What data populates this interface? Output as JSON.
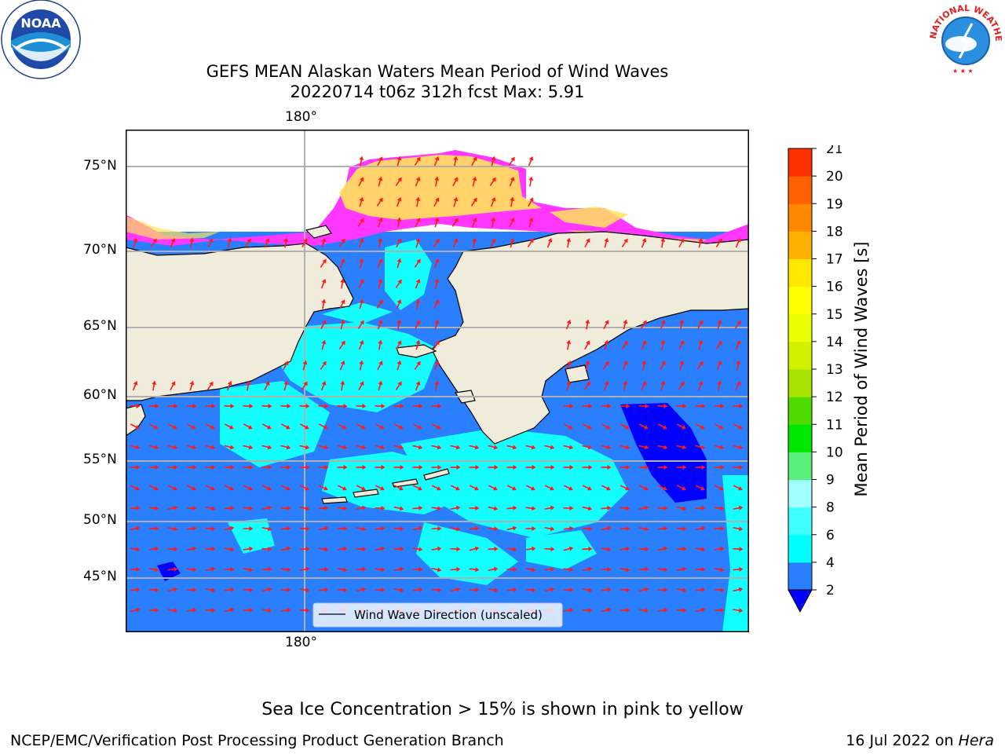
{
  "header": {
    "title_line1": "GEFS MEAN Alaskan Waters Mean Period of Wind Waves",
    "title_line2": "20220714 t06z 312h fcst   Max: 5.91"
  },
  "logos": {
    "noaa_text": "NOAA",
    "nws_text": "NATIONAL WEATHER SERVICE"
  },
  "map": {
    "top_lon_label": "180°",
    "bottom_lon_label": "180°",
    "lat_labels": [
      "75°N",
      "70°N",
      "65°N",
      "60°N",
      "55°N",
      "50°N",
      "45°N"
    ],
    "legend_label": "Wind Wave Direction (unscaled)",
    "colors": {
      "land": "#efecdc",
      "ocean_low": "#2a7fff",
      "ocean_mid": "#13ffff",
      "ocean_deep": "#0000ff",
      "ice_pink": "#ff37ff",
      "ice_yellow": "#ffe45a",
      "arrow": "#ff1a1a"
    }
  },
  "colorbar": {
    "label": "Mean Period of Wind Waves [s]",
    "ticks": [
      "2",
      "4",
      "6",
      "8",
      "9",
      "10",
      "11",
      "12",
      "13",
      "14",
      "15",
      "16",
      "17",
      "18",
      "19",
      "20",
      "21"
    ],
    "colors": [
      "#2a7fff",
      "#00ffff",
      "#40ffff",
      "#a0ffff",
      "#58f078",
      "#00e800",
      "#50dc00",
      "#a8e400",
      "#d0f000",
      "#eaff00",
      "#ffff00",
      "#ffe800",
      "#ffb000",
      "#ff8800",
      "#ff6000",
      "#ff3000",
      "#ff0000"
    ],
    "under_color": "#0000ff"
  },
  "footer": {
    "note": "Sea Ice Concentration > 15% is shown in pink to yellow",
    "credit": "NCEP/EMC/Verification Post Processing Product Generation Branch",
    "date_text": "16 Jul 2022 on ",
    "host": "Hera"
  }
}
